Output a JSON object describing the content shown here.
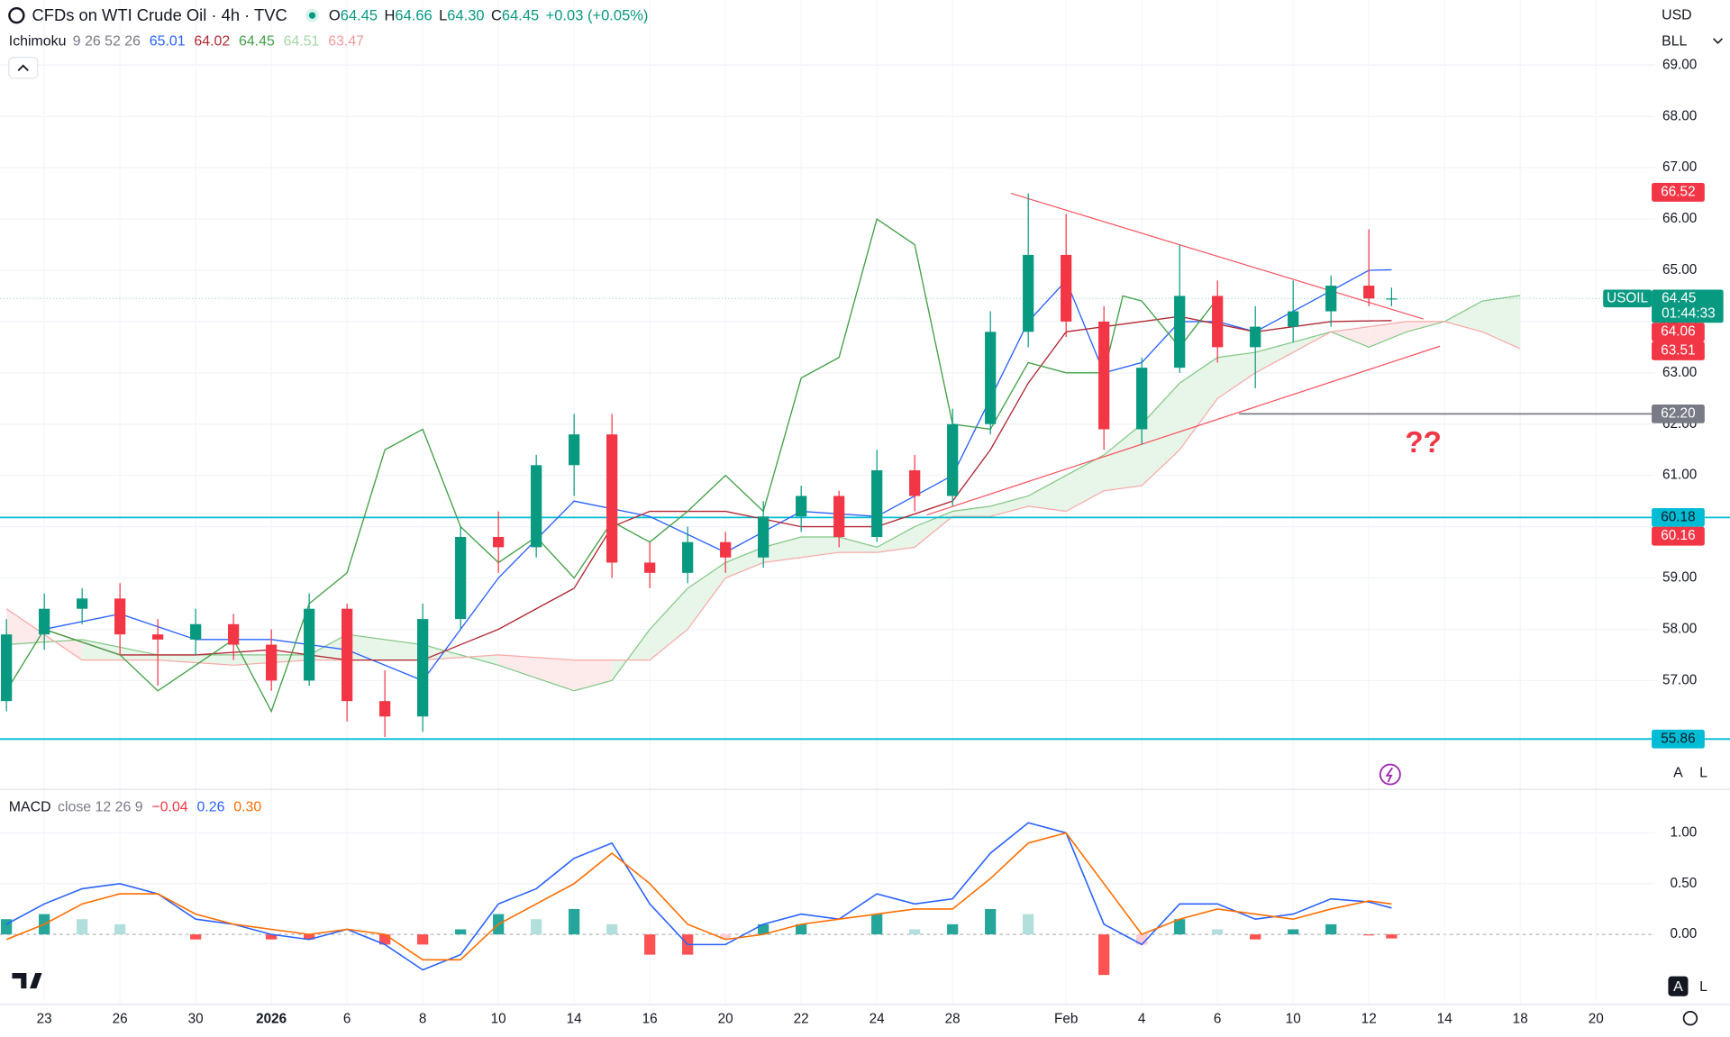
{
  "chart_data": [
    {
      "type": "candlestick",
      "title": "CFDs on WTI Crude Oil · 4h · TVC",
      "x": [
        -1,
        0,
        1,
        2,
        3,
        4,
        5,
        6,
        7,
        8,
        9,
        10,
        11,
        12,
        13,
        14,
        15,
        16,
        17,
        18,
        19,
        20,
        21,
        22,
        23,
        24,
        25,
        26,
        27,
        28,
        29,
        30,
        31,
        32,
        33,
        34,
        35,
        35.6
      ],
      "open": [
        56.6,
        57.9,
        58.4,
        58.6,
        57.9,
        57.8,
        58.1,
        57.7,
        57.0,
        58.4,
        56.6,
        56.3,
        58.2,
        59.8,
        59.6,
        61.2,
        61.8,
        59.3,
        59.1,
        59.7,
        59.4,
        60.2,
        60.6,
        59.8,
        61.1,
        60.6,
        62.0,
        63.8,
        65.3,
        64.0,
        61.9,
        63.1,
        64.5,
        63.5,
        63.9,
        64.2,
        64.7,
        64.45
      ],
      "high": [
        58.2,
        58.7,
        58.8,
        58.9,
        58.2,
        58.4,
        58.3,
        58.0,
        58.7,
        58.5,
        57.2,
        58.5,
        60.0,
        60.3,
        61.4,
        62.2,
        62.2,
        59.7,
        60.0,
        59.9,
        60.5,
        60.8,
        60.7,
        61.5,
        61.4,
        62.3,
        64.2,
        66.5,
        66.1,
        64.3,
        63.3,
        65.5,
        64.8,
        64.3,
        64.8,
        64.9,
        65.8,
        64.66
      ],
      "low": [
        56.4,
        57.6,
        58.1,
        57.5,
        56.9,
        57.5,
        57.4,
        56.8,
        56.9,
        56.2,
        55.9,
        56.0,
        58.0,
        59.1,
        59.4,
        60.6,
        59.0,
        58.8,
        58.9,
        59.1,
        59.2,
        59.9,
        59.6,
        59.7,
        60.3,
        60.4,
        61.8,
        63.5,
        63.7,
        61.5,
        61.6,
        63.0,
        63.2,
        62.7,
        63.6,
        63.9,
        64.3,
        64.3
      ],
      "close": [
        57.9,
        58.4,
        58.6,
        57.9,
        57.8,
        58.1,
        57.7,
        57.0,
        58.4,
        56.6,
        56.3,
        58.2,
        59.8,
        59.6,
        61.2,
        61.8,
        59.3,
        59.1,
        59.7,
        59.4,
        60.2,
        60.6,
        59.8,
        61.1,
        60.6,
        62.0,
        63.8,
        65.3,
        64.0,
        61.9,
        63.1,
        64.5,
        63.5,
        63.9,
        64.2,
        64.7,
        64.45,
        64.45
      ],
      "up_color": "#089981",
      "down_color": "#f23645",
      "xlim": [
        -1.17,
        42.56
      ],
      "ylim": [
        54.89,
        70.27
      ],
      "yticks": [
        {
          "value": 57,
          "label": "57.00"
        },
        {
          "value": 58,
          "label": "58.00"
        },
        {
          "value": 59,
          "label": "59.00"
        },
        {
          "value": 60,
          "label": "60.00"
        },
        {
          "value": 61,
          "label": "61.00"
        },
        {
          "value": 62,
          "label": "62.00"
        },
        {
          "value": 63,
          "label": "63.00"
        },
        {
          "value": 64,
          "label": "64.00"
        },
        {
          "value": 65,
          "label": "65.00"
        },
        {
          "value": 66,
          "label": "66.00"
        },
        {
          "value": 67,
          "label": "67.00"
        },
        {
          "value": 68,
          "label": "68.00"
        },
        {
          "value": 69,
          "label": "69.00"
        }
      ],
      "grid": true,
      "series": [
        {
          "color": "#2962ff",
          "x": [
            0,
            2,
            4,
            6,
            8,
            10,
            12,
            14,
            16,
            18,
            20,
            22,
            24,
            25,
            26,
            27,
            28,
            29,
            30,
            31,
            32,
            33,
            35,
            35.6
          ],
          "values": [
            58.0,
            58.3,
            57.8,
            57.8,
            57.6,
            57.0,
            59.0,
            60.5,
            60.2,
            59.5,
            60.3,
            60.2,
            61.0,
            62.5,
            64.0,
            64.8,
            63.0,
            63.2,
            64.0,
            64.0,
            63.8,
            64.2,
            65.0,
            65.01
          ]
        },
        {
          "color": "#b22833",
          "x": [
            0,
            2,
            4,
            6,
            8,
            10,
            12,
            14,
            15,
            16,
            18,
            20,
            22,
            24,
            25,
            26,
            27,
            29,
            30,
            32,
            34,
            35.6
          ],
          "values": [
            58.0,
            57.5,
            57.5,
            57.6,
            57.4,
            57.4,
            58.0,
            58.8,
            60.0,
            60.3,
            60.3,
            60.0,
            60.0,
            60.5,
            61.5,
            62.8,
            63.8,
            64.0,
            64.1,
            63.8,
            64.0,
            64.02
          ]
        },
        {
          "color": "#43a047",
          "x": [
            -1,
            0,
            2,
            3,
            5,
            6,
            7,
            8,
            9,
            10,
            11,
            12,
            13,
            14,
            15,
            16,
            17,
            18,
            19,
            20,
            21,
            22,
            23,
            24,
            25,
            26,
            27,
            28,
            28.5,
            29,
            30,
            31
          ],
          "values": [
            56.8,
            58.0,
            57.5,
            56.8,
            57.8,
            56.4,
            58.5,
            59.1,
            61.5,
            61.9,
            60.0,
            59.3,
            59.8,
            59.0,
            60.1,
            59.7,
            60.3,
            61.0,
            60.3,
            62.9,
            63.3,
            66.0,
            65.5,
            62.0,
            61.9,
            63.2,
            63.0,
            63.0,
            64.5,
            64.4,
            63.5,
            64.45
          ]
        }
      ],
      "cloud": {
        "x": [
          -1,
          1,
          3,
          5,
          7,
          8,
          10,
          12,
          14,
          15,
          16,
          17,
          18,
          19,
          20,
          21,
          22,
          23,
          24,
          25,
          26,
          27,
          28,
          29,
          30,
          31,
          32,
          33,
          34,
          35,
          36,
          37,
          38,
          39
        ],
        "span_a": [
          57.7,
          57.8,
          57.5,
          57.5,
          57.5,
          57.9,
          57.7,
          57.3,
          56.8,
          57.0,
          58.0,
          58.8,
          59.3,
          59.6,
          59.8,
          59.8,
          59.6,
          60.0,
          60.3,
          60.4,
          60.6,
          61.0,
          61.4,
          62.0,
          62.8,
          63.3,
          63.4,
          63.6,
          63.8,
          63.5,
          63.8,
          64.0,
          64.4,
          64.51
        ],
        "span_b": [
          58.4,
          57.4,
          57.4,
          57.3,
          57.4,
          57.4,
          57.4,
          57.5,
          57.4,
          57.4,
          57.4,
          58.0,
          59.0,
          59.3,
          59.4,
          59.5,
          59.5,
          59.6,
          60.2,
          60.2,
          60.4,
          60.3,
          60.7,
          60.8,
          61.5,
          62.5,
          63.0,
          63.4,
          63.8,
          63.9,
          64.0,
          64.0,
          63.8,
          63.47
        ],
        "a_color": "#81c784",
        "b_color": "#f7a9a7",
        "up_fill": "#e8f5e9",
        "down_fill": "#fdebec"
      },
      "hlines": [
        {
          "value": 60.18,
          "color": "#00bcd4"
        },
        {
          "value": 55.86,
          "color": "#00bcd4"
        }
      ],
      "support": {
        "value": 62.2,
        "x_start": 31.57,
        "color": "#787b86"
      },
      "trendlines": [
        {
          "x": [
            25.54,
            36.44
          ],
          "values": [
            66.5,
            64.05
          ],
          "color": "#f7525f"
        },
        {
          "x": [
            23.32,
            36.88
          ],
          "values": [
            60.23,
            63.52
          ],
          "color": "#f7525f"
        }
      ],
      "annotation": "??",
      "last_price": {
        "name": "USOIL",
        "value": 64.45,
        "countdown": "01:44:33",
        "color": "#089981"
      },
      "price_labels": [
        {
          "value": 66.52,
          "color": "#f23645",
          "text_color": "#ffffff"
        },
        {
          "value": 64.06,
          "color": "#f23645",
          "text_color": "#ffffff"
        },
        {
          "value": 63.51,
          "color": "#f23645",
          "text_color": "#ffffff"
        },
        {
          "value": 62.2,
          "label": "62.20",
          "color": "#787b86",
          "text_color": "#ffffff"
        },
        {
          "value": 60.18,
          "color": "#00bcd4",
          "text_color": "#131722"
        },
        {
          "value": 60.16,
          "color": "#f23645",
          "text_color": "#ffffff"
        },
        {
          "value": 55.86,
          "color": "#00bcd4",
          "text_color": "#131722"
        }
      ]
    },
    {
      "type": "macd",
      "x": [
        -1,
        0,
        1,
        2,
        3,
        4,
        5,
        6,
        7,
        8,
        9,
        10,
        11,
        12,
        13,
        14,
        15,
        16,
        17,
        18,
        19,
        20,
        21,
        22,
        23,
        24,
        25,
        26,
        27,
        28,
        29,
        30,
        31,
        32,
        33,
        34,
        35,
        35.6
      ],
      "histogram": [
        0.15,
        0.2,
        0.15,
        0.1,
        0,
        -0.05,
        0,
        -0.05,
        -0.05,
        0,
        -0.1,
        -0.1,
        0.05,
        0.2,
        0.15,
        0.25,
        0.1,
        -0.2,
        -0.2,
        -0.05,
        0.1,
        0.1,
        0,
        0.2,
        0.05,
        0.1,
        0.25,
        0.2,
        0,
        -0.4,
        -0.1,
        0.15,
        0.05,
        -0.05,
        0.05,
        0.1,
        -0.01,
        -0.04
      ],
      "histogram_colors": {
        "up_strong": "#26a69a",
        "up_weak": "#b2dfdb",
        "down_strong": "#ff5252",
        "down_weak": "#ffcdd2"
      },
      "series": [
        {
          "color": "#2962ff",
          "values": [
            0.1,
            0.3,
            0.45,
            0.5,
            0.4,
            0.15,
            0.1,
            0.0,
            -0.05,
            0.05,
            -0.1,
            -0.35,
            -0.2,
            0.3,
            0.45,
            0.75,
            0.9,
            0.3,
            -0.1,
            -0.1,
            0.1,
            0.2,
            0.15,
            0.4,
            0.3,
            0.35,
            0.8,
            1.1,
            1.0,
            0.1,
            -0.1,
            0.3,
            0.3,
            0.15,
            0.2,
            0.35,
            0.32,
            0.26
          ]
        },
        {
          "color": "#ff6d00",
          "values": [
            -0.05,
            0.1,
            0.3,
            0.4,
            0.4,
            0.2,
            0.1,
            0.05,
            0.0,
            0.05,
            0.0,
            -0.25,
            -0.25,
            0.1,
            0.3,
            0.5,
            0.8,
            0.5,
            0.1,
            -0.05,
            0.0,
            0.1,
            0.15,
            0.2,
            0.25,
            0.25,
            0.55,
            0.9,
            1.0,
            0.5,
            0.0,
            0.15,
            0.25,
            0.2,
            0.15,
            0.25,
            0.33,
            0.3
          ]
        }
      ],
      "xlim": [
        -1.17,
        42.56
      ],
      "ylim": [
        -0.685,
        1.424
      ],
      "yticks": [
        {
          "value": 0,
          "label": "0.00"
        },
        {
          "value": 0.5,
          "label": "0.50"
        },
        {
          "value": 1,
          "label": "1.00"
        }
      ],
      "xticks": [
        {
          "value": 0,
          "label": "23"
        },
        {
          "value": 2,
          "label": "26"
        },
        {
          "value": 4,
          "label": "30"
        },
        {
          "value": 6,
          "label": "2026"
        },
        {
          "value": 8,
          "label": "6"
        },
        {
          "value": 10,
          "label": "8"
        },
        {
          "value": 12,
          "label": "10"
        },
        {
          "value": 14,
          "label": "14"
        },
        {
          "value": 16,
          "label": "16"
        },
        {
          "value": 18,
          "label": "20"
        },
        {
          "value": 20,
          "label": "22"
        },
        {
          "value": 22,
          "label": "24"
        },
        {
          "value": 24,
          "label": "28"
        },
        {
          "value": 27,
          "label": "Feb"
        },
        {
          "value": 29,
          "label": "4"
        },
        {
          "value": 31,
          "label": "6"
        },
        {
          "value": 33,
          "label": "10"
        },
        {
          "value": 35,
          "label": "12"
        },
        {
          "value": 37,
          "label": "14"
        },
        {
          "value": 39,
          "label": "18"
        },
        {
          "value": 41,
          "label": "20"
        }
      ],
      "grid": true
    }
  ],
  "legend": {
    "ohlc": [
      {
        "key": "O",
        "value": "64.45"
      },
      {
        "key": "H",
        "value": "64.66"
      },
      {
        "key": "L",
        "value": "64.30"
      },
      {
        "key": "C",
        "value": "64.45"
      }
    ],
    "change": "+0.03 (+0.05%)"
  },
  "ichimoku": {
    "name": "Ichimoku",
    "params": "9 26 52 26",
    "values": [
      {
        "text": "65.01",
        "color": "#2962ff"
      },
      {
        "text": "64.02",
        "color": "#b22833"
      },
      {
        "text": "64.45",
        "color": "#43a047"
      },
      {
        "text": "64.51",
        "color": "#a5d6a7"
      },
      {
        "text": "63.47",
        "color": "#ef9a9a"
      }
    ]
  },
  "macd_legend": {
    "name": "MACD",
    "params": "close 12 26 9",
    "values": [
      {
        "text": "−0.04",
        "color": "#f23645"
      },
      {
        "text": "0.26",
        "color": "#2962ff"
      },
      {
        "text": "0.30",
        "color": "#ff6d00"
      }
    ]
  },
  "toolbar": {
    "currency": "USD",
    "unit": "BLL",
    "price_buttons": [
      "A",
      "L"
    ],
    "macd_buttons": [
      "A",
      "L"
    ]
  }
}
